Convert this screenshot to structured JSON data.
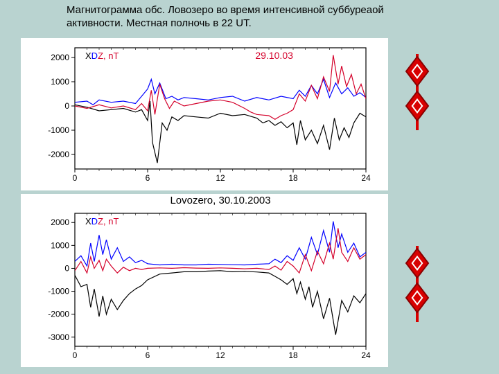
{
  "caption": "Магнитограмма обс. Ловозеро во время интенсивной суббуреаой активности. Местная полночь в 22 UT.",
  "colors": {
    "bg": "#b9d3d0",
    "panel": "#ffffff",
    "axis": "#000000",
    "seriesX": "#000000",
    "seriesD": "#0000ff",
    "seriesZ": "#d4002a",
    "date": "#d4002a",
    "diamondFill": "#d80000",
    "diamondStroke": "#8a0000",
    "diamondInner": "#ffffff"
  },
  "chart1": {
    "type": "line",
    "date": "29.10.03",
    "legend_y": "XDZ, nT",
    "legend_colors": {
      "X": "#000000",
      "D": "#0000ff",
      "Z": "#d4002a"
    },
    "xlim": [
      0,
      24
    ],
    "xticks": [
      0,
      6,
      12,
      18,
      24
    ],
    "ylim": [
      -2600,
      2400
    ],
    "yticks": [
      -2000,
      -1000,
      0,
      1000,
      2000
    ],
    "axis_fontsize": 12,
    "series": {
      "X": [
        [
          0,
          50
        ],
        [
          1,
          -50
        ],
        [
          2,
          -200
        ],
        [
          3,
          -150
        ],
        [
          4,
          -100
        ],
        [
          5,
          -250
        ],
        [
          5.5,
          -150
        ],
        [
          6,
          -600
        ],
        [
          6.2,
          200
        ],
        [
          6.4,
          -1500
        ],
        [
          6.8,
          -2350
        ],
        [
          7.2,
          -700
        ],
        [
          7.6,
          -1000
        ],
        [
          8,
          -450
        ],
        [
          8.5,
          -600
        ],
        [
          9,
          -400
        ],
        [
          10,
          -450
        ],
        [
          11,
          -500
        ],
        [
          12,
          -300
        ],
        [
          13,
          -400
        ],
        [
          14,
          -350
        ],
        [
          15,
          -500
        ],
        [
          15.5,
          -700
        ],
        [
          16,
          -600
        ],
        [
          16.5,
          -800
        ],
        [
          17,
          -650
        ],
        [
          17.5,
          -900
        ],
        [
          18,
          -700
        ],
        [
          18.3,
          -1600
        ],
        [
          18.6,
          -600
        ],
        [
          19,
          -1400
        ],
        [
          19.5,
          -1000
        ],
        [
          20,
          -1550
        ],
        [
          20.5,
          -800
        ],
        [
          21,
          -1800
        ],
        [
          21.4,
          -500
        ],
        [
          21.8,
          -1400
        ],
        [
          22.2,
          -900
        ],
        [
          22.6,
          -1300
        ],
        [
          23,
          -700
        ],
        [
          23.5,
          -300
        ],
        [
          24,
          -450
        ]
      ],
      "D": [
        [
          0,
          150
        ],
        [
          1,
          200
        ],
        [
          1.5,
          50
        ],
        [
          2,
          250
        ],
        [
          3,
          150
        ],
        [
          4,
          200
        ],
        [
          5,
          100
        ],
        [
          5.5,
          400
        ],
        [
          6,
          700
        ],
        [
          6.3,
          1100
        ],
        [
          6.6,
          500
        ],
        [
          7,
          950
        ],
        [
          7.5,
          300
        ],
        [
          8,
          400
        ],
        [
          8.5,
          250
        ],
        [
          9,
          350
        ],
        [
          10,
          300
        ],
        [
          11,
          250
        ],
        [
          12,
          350
        ],
        [
          13,
          400
        ],
        [
          14,
          200
        ],
        [
          15,
          350
        ],
        [
          16,
          250
        ],
        [
          17,
          400
        ],
        [
          18,
          300
        ],
        [
          18.5,
          650
        ],
        [
          19,
          400
        ],
        [
          19.5,
          850
        ],
        [
          20,
          500
        ],
        [
          20.5,
          1100
        ],
        [
          21,
          350
        ],
        [
          21.5,
          950
        ],
        [
          22,
          500
        ],
        [
          22.5,
          750
        ],
        [
          23,
          400
        ],
        [
          23.5,
          550
        ],
        [
          24,
          350
        ]
      ],
      "Z": [
        [
          0,
          0
        ],
        [
          1,
          -100
        ],
        [
          2,
          50
        ],
        [
          3,
          -80
        ],
        [
          4,
          0
        ],
        [
          5,
          -150
        ],
        [
          5.5,
          100
        ],
        [
          6,
          -200
        ],
        [
          6.3,
          650
        ],
        [
          6.6,
          -350
        ],
        [
          7,
          900
        ],
        [
          7.4,
          300
        ],
        [
          7.8,
          -100
        ],
        [
          8.2,
          200
        ],
        [
          9,
          0
        ],
        [
          10,
          100
        ],
        [
          11,
          200
        ],
        [
          12,
          250
        ],
        [
          13,
          150
        ],
        [
          14,
          -100
        ],
        [
          14.5,
          -250
        ],
        [
          15,
          -350
        ],
        [
          16,
          -400
        ],
        [
          16.5,
          -550
        ],
        [
          17,
          -400
        ],
        [
          17.5,
          -300
        ],
        [
          18,
          -150
        ],
        [
          18.5,
          500
        ],
        [
          19,
          200
        ],
        [
          19.5,
          850
        ],
        [
          20,
          300
        ],
        [
          20.5,
          1200
        ],
        [
          21,
          600
        ],
        [
          21.3,
          2100
        ],
        [
          21.7,
          900
        ],
        [
          22,
          1650
        ],
        [
          22.4,
          800
        ],
        [
          22.8,
          1300
        ],
        [
          23.2,
          500
        ],
        [
          23.6,
          900
        ],
        [
          24,
          300
        ]
      ]
    }
  },
  "chart2": {
    "type": "line",
    "title": "Lovozero, 30.10.2003",
    "legend_y": "XDZ, nT",
    "legend_colors": {
      "X": "#000000",
      "D": "#0000ff",
      "Z": "#d4002a"
    },
    "xlim": [
      0,
      24
    ],
    "xticks": [
      0,
      6,
      12,
      18,
      24
    ],
    "ylim": [
      -3400,
      2400
    ],
    "yticks": [
      -3000,
      -2000,
      -1000,
      0,
      1000,
      2000
    ],
    "axis_fontsize": 12,
    "series": {
      "X": [
        [
          0,
          -300
        ],
        [
          0.5,
          -800
        ],
        [
          1,
          -700
        ],
        [
          1.3,
          -1700
        ],
        [
          1.6,
          -900
        ],
        [
          2,
          -2100
        ],
        [
          2.3,
          -1200
        ],
        [
          2.6,
          -2000
        ],
        [
          3,
          -1350
        ],
        [
          3.5,
          -1800
        ],
        [
          4,
          -1400
        ],
        [
          4.5,
          -1100
        ],
        [
          5,
          -900
        ],
        [
          5.5,
          -750
        ],
        [
          6,
          -500
        ],
        [
          7,
          -250
        ],
        [
          8,
          -200
        ],
        [
          9,
          -150
        ],
        [
          10,
          -150
        ],
        [
          11,
          -120
        ],
        [
          12,
          -100
        ],
        [
          13,
          -150
        ],
        [
          14,
          -130
        ],
        [
          15,
          -160
        ],
        [
          16,
          -200
        ],
        [
          16.5,
          -350
        ],
        [
          17,
          -500
        ],
        [
          17.5,
          -700
        ],
        [
          18,
          -450
        ],
        [
          18.3,
          -1100
        ],
        [
          18.6,
          -600
        ],
        [
          19,
          -1350
        ],
        [
          19.3,
          -800
        ],
        [
          19.6,
          -1700
        ],
        [
          20,
          -1000
        ],
        [
          20.5,
          -2200
        ],
        [
          21,
          -1300
        ],
        [
          21.5,
          -2900
        ],
        [
          22,
          -1400
        ],
        [
          22.5,
          -1900
        ],
        [
          23,
          -1200
        ],
        [
          23.5,
          -1500
        ],
        [
          24,
          -1100
        ]
      ],
      "D": [
        [
          0,
          300
        ],
        [
          0.5,
          550
        ],
        [
          1,
          100
        ],
        [
          1.3,
          1100
        ],
        [
          1.6,
          300
        ],
        [
          2,
          1450
        ],
        [
          2.3,
          600
        ],
        [
          2.6,
          1250
        ],
        [
          3,
          400
        ],
        [
          3.5,
          900
        ],
        [
          4,
          300
        ],
        [
          4.5,
          500
        ],
        [
          5,
          250
        ],
        [
          5.5,
          350
        ],
        [
          6,
          200
        ],
        [
          7,
          150
        ],
        [
          8,
          180
        ],
        [
          9,
          150
        ],
        [
          10,
          150
        ],
        [
          11,
          180
        ],
        [
          12,
          170
        ],
        [
          13,
          160
        ],
        [
          14,
          150
        ],
        [
          15,
          180
        ],
        [
          16,
          200
        ],
        [
          16.5,
          400
        ],
        [
          17,
          250
        ],
        [
          17.5,
          550
        ],
        [
          18,
          350
        ],
        [
          18.5,
          900
        ],
        [
          19,
          400
        ],
        [
          19.5,
          1350
        ],
        [
          20,
          600
        ],
        [
          20.5,
          1650
        ],
        [
          21,
          700
        ],
        [
          21.3,
          2050
        ],
        [
          21.7,
          900
        ],
        [
          22,
          1500
        ],
        [
          22.5,
          700
        ],
        [
          23,
          1100
        ],
        [
          23.5,
          500
        ],
        [
          24,
          700
        ]
      ],
      "Z": [
        [
          0,
          -100
        ],
        [
          0.5,
          300
        ],
        [
          1,
          -200
        ],
        [
          1.3,
          500
        ],
        [
          1.6,
          0
        ],
        [
          2,
          350
        ],
        [
          2.3,
          -100
        ],
        [
          2.6,
          400
        ],
        [
          3,
          100
        ],
        [
          3.5,
          -200
        ],
        [
          4,
          50
        ],
        [
          4.5,
          -100
        ],
        [
          5,
          0
        ],
        [
          5.5,
          -50
        ],
        [
          6,
          0
        ],
        [
          7,
          20
        ],
        [
          8,
          0
        ],
        [
          9,
          30
        ],
        [
          10,
          10
        ],
        [
          11,
          0
        ],
        [
          12,
          20
        ],
        [
          13,
          0
        ],
        [
          14,
          -20
        ],
        [
          15,
          0
        ],
        [
          16,
          -50
        ],
        [
          16.5,
          100
        ],
        [
          17,
          -80
        ],
        [
          17.5,
          300
        ],
        [
          18,
          100
        ],
        [
          18.5,
          -200
        ],
        [
          19,
          600
        ],
        [
          19.5,
          -100
        ],
        [
          20,
          750
        ],
        [
          20.5,
          200
        ],
        [
          21,
          1100
        ],
        [
          21.3,
          400
        ],
        [
          21.7,
          1750
        ],
        [
          22,
          700
        ],
        [
          22.5,
          300
        ],
        [
          23,
          900
        ],
        [
          23.5,
          400
        ],
        [
          24,
          600
        ]
      ]
    }
  },
  "decorations": {
    "diamond": {
      "fill": "#d80000",
      "stroke": "#8a0000",
      "inner": "#ffffff",
      "width": 32,
      "height": 42
    }
  }
}
